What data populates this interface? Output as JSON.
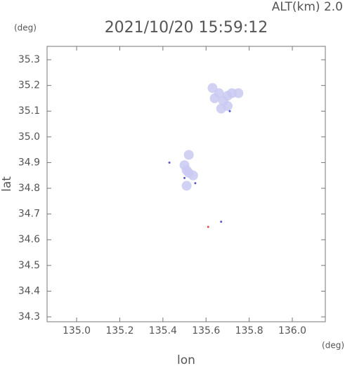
{
  "chart_data": {
    "type": "scatter",
    "title": "2021/10/20 15:59:12",
    "annotation": "ALT(km)  2.0",
    "y_unit": "(deg)",
    "x_unit": "(deg)",
    "xlabel": "lon",
    "ylabel": "lat",
    "xlim": [
      134.863,
      136.153
    ],
    "ylim": [
      34.281,
      35.352
    ],
    "xticks": [
      {
        "value": 135,
        "label": "135.0"
      },
      135.2,
      135.4,
      135.6,
      135.8,
      {
        "value": 136,
        "label": "136.0"
      }
    ],
    "yticks": [
      35.3,
      35.2,
      35.1,
      {
        "value": 35,
        "label": "35.0"
      },
      34.9,
      34.8,
      34.7,
      34.6,
      34.5,
      34.4,
      34.3
    ],
    "series": [
      {
        "color": "#c9c9f2",
        "x": [
          135.66,
          135.7,
          135.68,
          135.72,
          135.64,
          135.75,
          135.67,
          135.63,
          135.7,
          135.51,
          135.52,
          135.5,
          135.52,
          135.54,
          135.51
        ],
        "values": [
          35.17,
          35.16,
          35.14,
          35.17,
          35.15,
          35.17,
          35.11,
          35.19,
          35.12,
          34.87,
          34.86,
          34.89,
          34.93,
          34.85,
          34.81
        ]
      },
      {
        "color": "#5555cc",
        "x": [
          135.43,
          135.55,
          135.67,
          135.71,
          135.5
        ],
        "values": [
          34.9,
          34.82,
          34.67,
          35.1,
          34.84
        ]
      },
      {
        "color": "#e05050",
        "x": [
          135.61
        ],
        "values": [
          34.65
        ]
      }
    ]
  }
}
